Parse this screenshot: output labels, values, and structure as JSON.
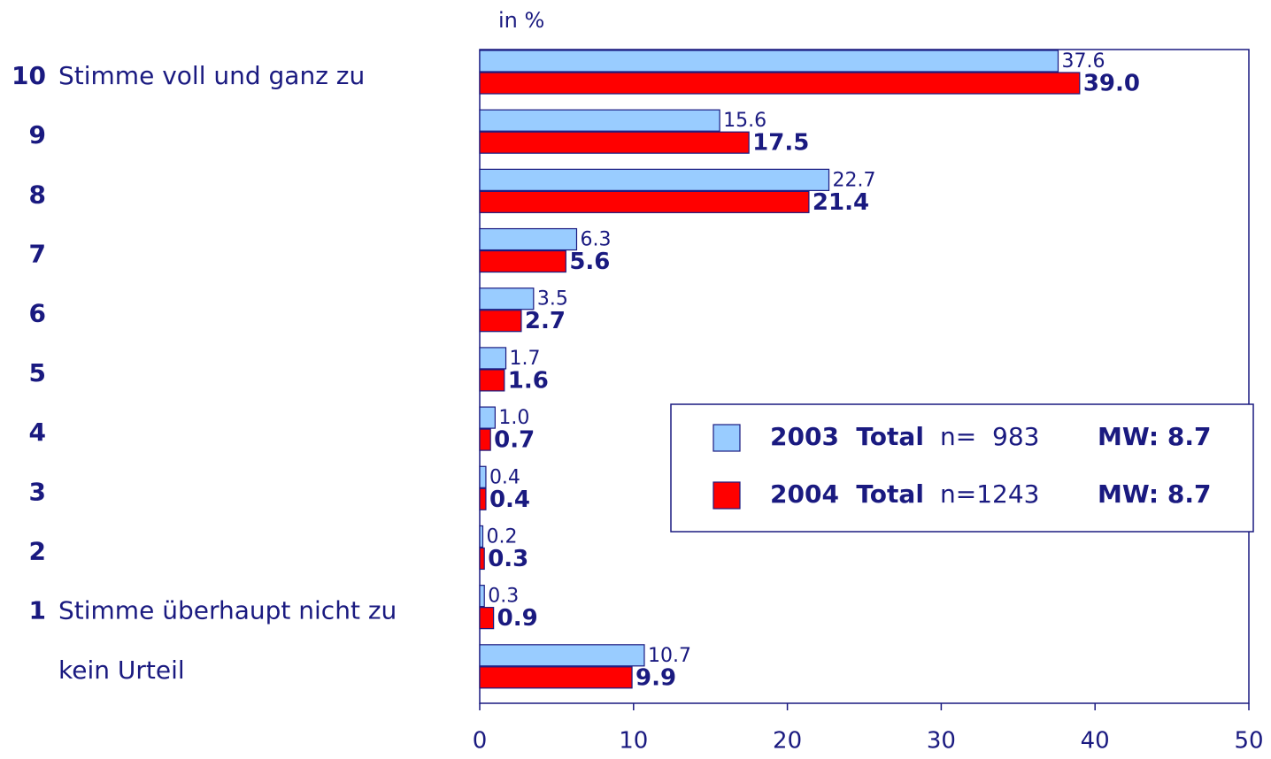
{
  "chart_data": {
    "type": "hbar",
    "axis_label": "in %",
    "categories": [
      "10",
      "9",
      "8",
      "7",
      "6",
      "5",
      "4",
      "3",
      "2",
      "1",
      null
    ],
    "category_labels": [
      "Stimme voll und ganz zu",
      null,
      null,
      null,
      null,
      null,
      null,
      null,
      null,
      "Stimme überhaupt nicht zu",
      "kein Urteil"
    ],
    "series": [
      {
        "name": "2003  Total",
        "n_label": "n=  983",
        "mean_label": "MW: 8.7",
        "color": "#99ccff",
        "values": [
          37.6,
          15.6,
          22.7,
          6.3,
          3.5,
          1.7,
          1.0,
          0.4,
          0.2,
          0.3,
          10.7
        ],
        "value_labels": [
          "37.6",
          "15.6",
          "22.7",
          "6.3",
          "3.5",
          "1.7",
          "1.0",
          "0.4",
          "0.2",
          "0.3",
          "10.7"
        ]
      },
      {
        "name": "2004  Total",
        "n_label": "n=1243",
        "mean_label": "MW: 8.7",
        "color": "#ff0000",
        "values": [
          39.0,
          17.5,
          21.4,
          5.6,
          2.7,
          1.6,
          0.7,
          0.4,
          0.3,
          0.9,
          9.9
        ],
        "value_labels": [
          "39.0",
          "17.5",
          "21.4",
          "5.6",
          "2.7",
          "1.6",
          "0.7",
          "0.4",
          "0.3",
          "0.9",
          "9.9"
        ]
      }
    ],
    "xlim": [
      0,
      50
    ],
    "xticks": [
      0,
      10,
      20,
      30,
      40,
      50
    ]
  }
}
